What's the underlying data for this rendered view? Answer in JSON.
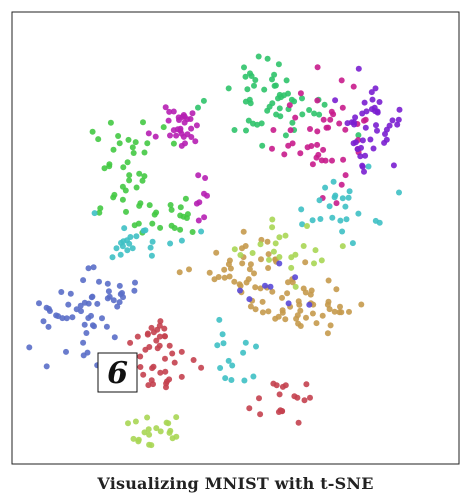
{
  "caption": "Visualizing MNIST with t-SNE",
  "chart_data": {
    "type": "scatter",
    "title": "Visualizing MNIST with t-SNE",
    "xlabel": "",
    "ylabel": "",
    "xlim": [
      0,
      100
    ],
    "ylim": [
      0,
      100
    ],
    "axes_ticks": false,
    "legend": false,
    "grid": false,
    "image_inset": {
      "glyph": "6",
      "x": 16,
      "y": 19
    },
    "clusters": [
      {
        "color": "#2fc36a",
        "center": [
          59,
          80
        ],
        "spread": [
          7.5,
          4
        ],
        "n": 40,
        "seed": 11
      },
      {
        "color": "#2fc36a",
        "center": [
          57,
          87
        ],
        "spread": [
          2.5,
          2.5
        ],
        "n": 14,
        "seed": 12
      },
      {
        "color": "#44c944",
        "center": [
          24,
          67
        ],
        "spread": [
          4,
          5
        ],
        "n": 32,
        "seed": 13
      },
      {
        "color": "#44c944",
        "center": [
          33,
          56
        ],
        "spread": [
          4.5,
          2.5
        ],
        "n": 24,
        "seed": 14
      },
      {
        "color": "#b61fb3",
        "center": [
          37,
          76
        ],
        "spread": [
          2.5,
          2.5
        ],
        "n": 30,
        "seed": 15
      },
      {
        "color": "#b61fb3",
        "center": [
          43,
          60
        ],
        "spread": [
          3,
          3
        ],
        "n": 8,
        "seed": 16
      },
      {
        "color": "#c81c8c",
        "center": [
          71,
          73
        ],
        "spread": [
          5,
          6
        ],
        "n": 46,
        "seed": 17
      },
      {
        "color": "#7a1fd0",
        "center": [
          82,
          75
        ],
        "spread": [
          4,
          5
        ],
        "n": 44,
        "seed": 18
      },
      {
        "color": "#3ec0c4",
        "center": [
          27,
          50
        ],
        "spread": [
          6,
          3
        ],
        "n": 22,
        "seed": 19
      },
      {
        "color": "#3ec0c4",
        "center": [
          74,
          57
        ],
        "spread": [
          5,
          4
        ],
        "n": 24,
        "seed": 20
      },
      {
        "color": "#3ec0c4",
        "center": [
          49,
          22
        ],
        "spread": [
          3,
          3.5
        ],
        "n": 14,
        "seed": 21
      },
      {
        "color": "#c59a4c",
        "center": [
          53,
          43
        ],
        "spread": [
          6,
          3.5
        ],
        "n": 42,
        "seed": 22
      },
      {
        "color": "#c59a4c",
        "center": [
          67,
          34
        ],
        "spread": [
          5.5,
          3
        ],
        "n": 44,
        "seed": 23
      },
      {
        "color": "#a8d654",
        "center": [
          62,
          47
        ],
        "spread": [
          7,
          3.5
        ],
        "n": 22,
        "seed": 24
      },
      {
        "color": "#a8d654",
        "center": [
          31,
          5
        ],
        "spread": [
          3,
          2.5
        ],
        "n": 20,
        "seed": 25
      },
      {
        "color": "#5a6ec8",
        "center": [
          14,
          32
        ],
        "spread": [
          5.5,
          5.5
        ],
        "n": 46,
        "seed": 26
      },
      {
        "color": "#5a6ec8",
        "center": [
          25,
          37
        ],
        "spread": [
          3,
          2
        ],
        "n": 10,
        "seed": 27
      },
      {
        "color": "#c4414f",
        "center": [
          34,
          23
        ],
        "spread": [
          4,
          5
        ],
        "n": 40,
        "seed": 28
      },
      {
        "color": "#c4414f",
        "center": [
          61,
          12
        ],
        "spread": [
          3.5,
          1.8
        ],
        "n": 18,
        "seed": 29
      },
      {
        "color": "#5a4ad8",
        "center": [
          60,
          38
        ],
        "spread": [
          6,
          5
        ],
        "n": 8,
        "seed": 30
      }
    ]
  }
}
